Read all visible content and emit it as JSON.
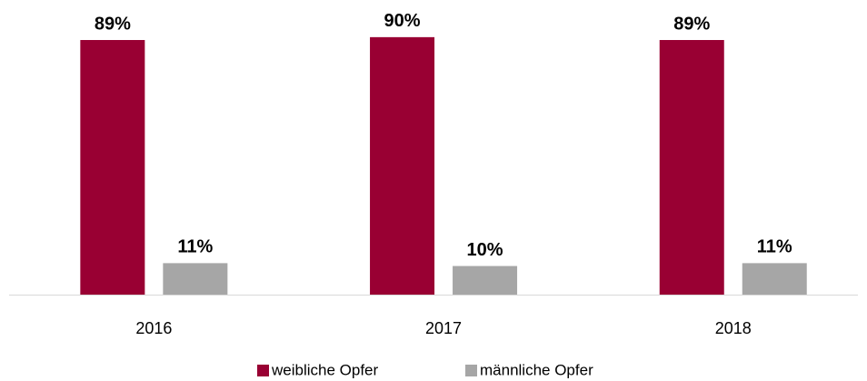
{
  "chart_data": {
    "type": "bar",
    "categories": [
      "2016",
      "2017",
      "2018"
    ],
    "series": [
      {
        "name": "weibliche Opfer",
        "color": "#990033",
        "values": [
          89,
          90,
          89
        ],
        "value_labels": [
          "89%",
          "90%",
          "89%"
        ]
      },
      {
        "name": "männliche Opfer",
        "color": "#a6a6a6",
        "values": [
          11,
          10,
          11
        ],
        "value_labels": [
          "11%",
          "10%",
          "11%"
        ]
      }
    ],
    "legend": "bottom"
  }
}
